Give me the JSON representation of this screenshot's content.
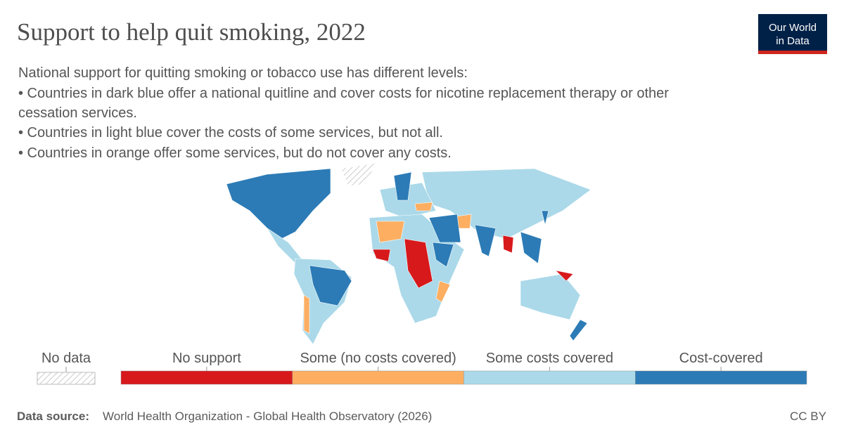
{
  "header": {
    "title": "Support to help quit smoking, 2022",
    "logo": [
      "Our World",
      "in Data"
    ]
  },
  "subtitle": {
    "intro": "National support for quitting smoking or tobacco use has different levels:",
    "bullets": [
      "• Countries in dark blue offer a national quitline and cover costs for nicotine replacement therapy or other",
      "cessation services.",
      "• Countries in light blue cover the costs of some services, but not all.",
      "• Countries in orange offer some services, but do not cover any costs."
    ]
  },
  "legend": {
    "no_data": "No data",
    "categories": [
      {
        "label": "No support",
        "color": "#d7191c"
      },
      {
        "label": "Some (no costs covered)",
        "color": "#fdae61"
      },
      {
        "label": "Some costs covered",
        "color": "#abd9e9"
      },
      {
        "label": "Cost-covered",
        "color": "#2c7bb6"
      }
    ]
  },
  "footer": {
    "source_label": "Data source:",
    "source": "World Health Organization - Global Health Observatory (2026)",
    "license": "CC BY"
  }
}
